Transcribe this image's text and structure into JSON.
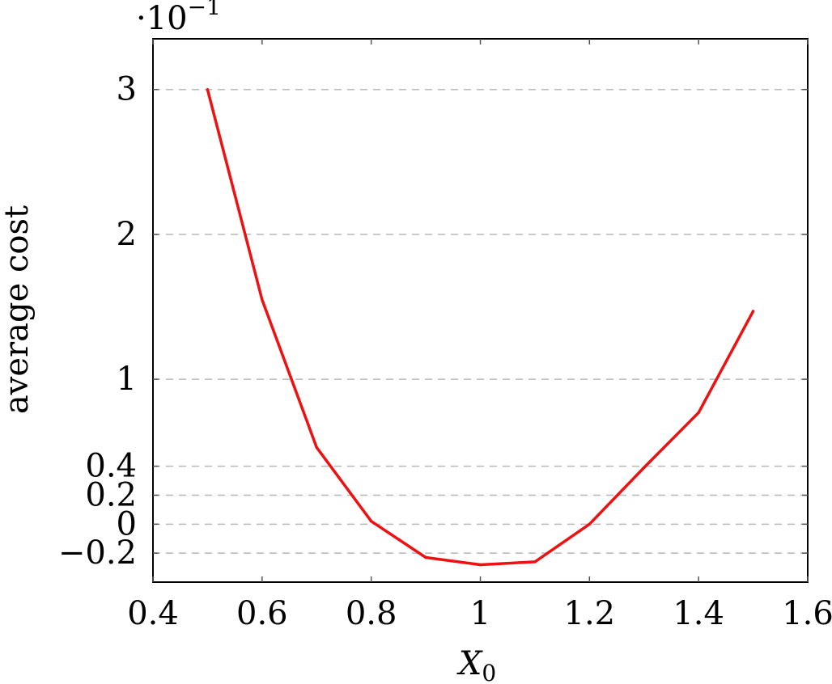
{
  "chart_data": {
    "type": "line",
    "title": "",
    "xlabel": "X",
    "xlabel_subscript": "0",
    "ylabel": "average cost",
    "y_multiplier": {
      "base": "·10",
      "exponent": "−1"
    },
    "xlim": [
      0.4,
      1.6
    ],
    "ylim": [
      -0.4,
      3.35
    ],
    "x_ticks": [
      0.4,
      0.6,
      0.8,
      1.0,
      1.2,
      1.4,
      1.6
    ],
    "x_tick_labels": [
      "0.4",
      "0.6",
      "0.8",
      "1",
      "1.2",
      "1.4",
      "1.6"
    ],
    "y_ticks": [
      -0.2,
      0,
      0.2,
      0.4,
      1,
      2,
      3
    ],
    "y_tick_labels": [
      "−0.2",
      "0",
      "0.2",
      "0.4",
      "1",
      "2",
      "3"
    ],
    "grid": "horizontal-dashed",
    "legend": "none",
    "series": [
      {
        "color": "#ee1111",
        "x": [
          0.5,
          0.6,
          0.7,
          0.8,
          0.9,
          1.0,
          1.1,
          1.2,
          1.3,
          1.4,
          1.5
        ],
        "y": [
          3.0,
          1.55,
          0.53,
          0.02,
          -0.23,
          -0.28,
          -0.26,
          0.0,
          0.39,
          0.77,
          1.47
        ]
      }
    ]
  }
}
